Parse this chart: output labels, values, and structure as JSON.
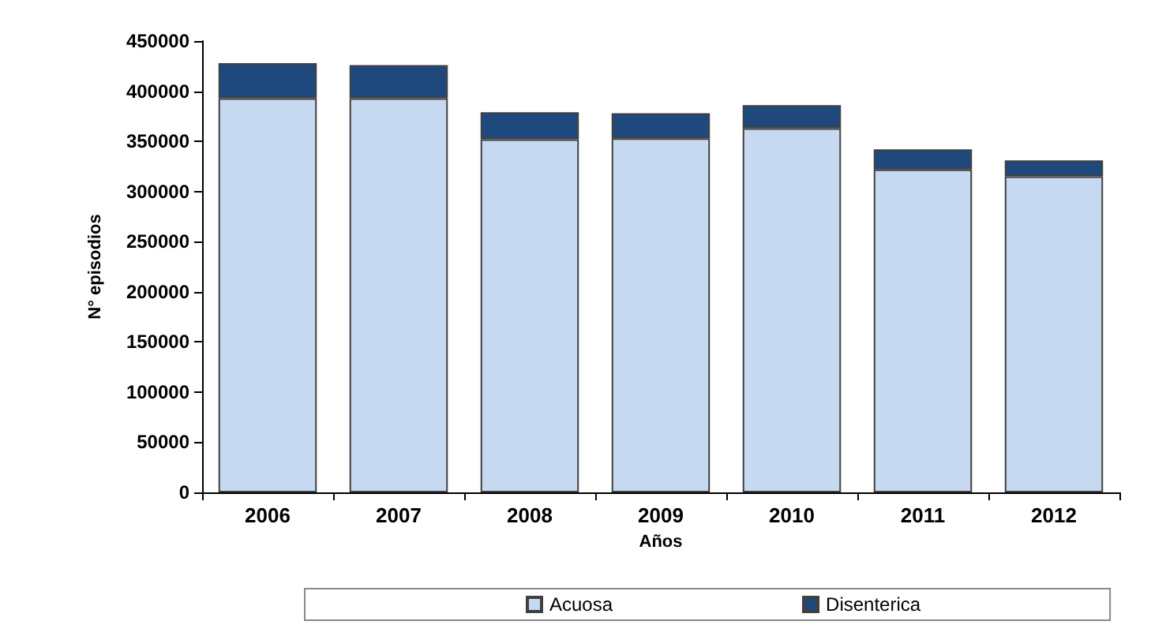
{
  "chart_data": {
    "type": "bar",
    "stacked": true,
    "xlabel": "Años",
    "ylabel": "N° episodios",
    "categories": [
      "2006",
      "2007",
      "2008",
      "2009",
      "2010",
      "2011",
      "2012"
    ],
    "series": [
      {
        "name": "Acuosa",
        "color": "#c6d9f0",
        "values": [
          393000,
          393000,
          352000,
          353000,
          363000,
          322000,
          315000
        ]
      },
      {
        "name": "Disenterica",
        "color": "#1f497d",
        "values": [
          35000,
          33000,
          27000,
          25000,
          23000,
          20000,
          16000
        ]
      }
    ],
    "ylim": [
      0,
      450000
    ],
    "yticks": [
      0,
      50000,
      100000,
      150000,
      200000,
      250000,
      300000,
      350000,
      400000,
      450000
    ],
    "grid": false,
    "legend": "bottom"
  }
}
